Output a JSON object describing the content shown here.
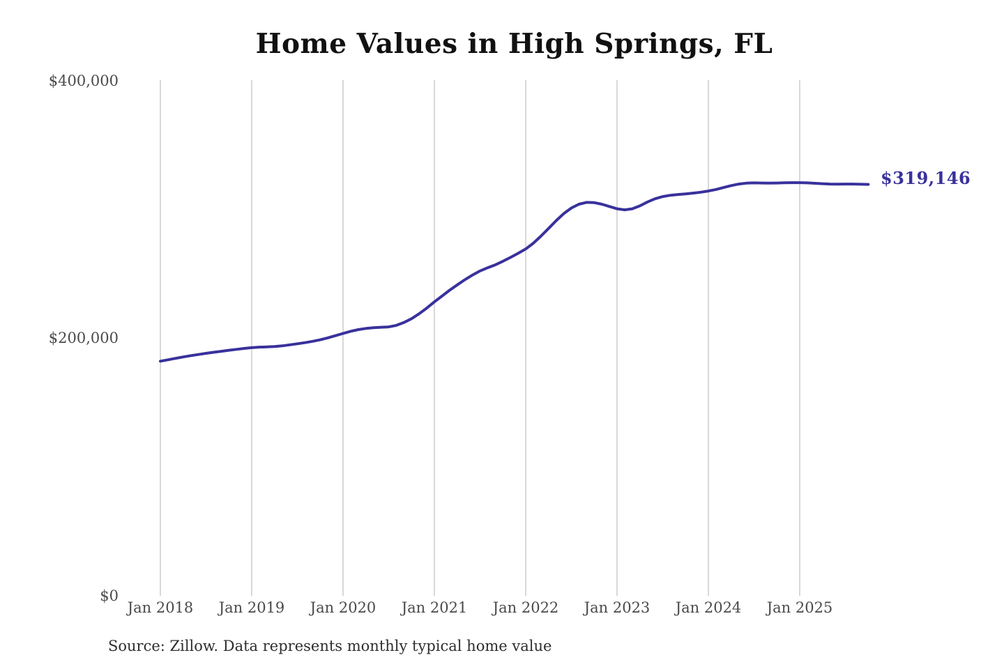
{
  "chart": {
    "title": "Home Values in High Springs, FL",
    "source": "Source: Zillow. Data represents monthly typical home value",
    "end_label": "$319,146"
  },
  "chart_data": {
    "type": "line",
    "title": "Home Values in High Springs, FL",
    "xlabel": "",
    "ylabel": "",
    "ylim": [
      0,
      400000
    ],
    "grid": "vertical-only",
    "legend_position": "none",
    "line_color": "#39319c",
    "gridline_color": "#cbcbcb",
    "title_color": "#111111",
    "tick_color": "#4a4a4a",
    "y_ticks": [
      "$0",
      "$200,000",
      "$400,000"
    ],
    "x_ticks": [
      "Jan 2018",
      "Jan 2019",
      "Jan 2020",
      "Jan 2021",
      "Jan 2022",
      "Jan 2023",
      "Jan 2024",
      "Jan 2025"
    ],
    "final_value": 319146,
    "months": [
      "2018-01",
      "2018-02",
      "2018-03",
      "2018-04",
      "2018-05",
      "2018-06",
      "2018-07",
      "2018-08",
      "2018-09",
      "2018-10",
      "2018-11",
      "2018-12",
      "2019-01",
      "2019-02",
      "2019-03",
      "2019-04",
      "2019-05",
      "2019-06",
      "2019-07",
      "2019-08",
      "2019-09",
      "2019-10",
      "2019-11",
      "2019-12",
      "2020-01",
      "2020-02",
      "2020-03",
      "2020-04",
      "2020-05",
      "2020-06",
      "2020-07",
      "2020-08",
      "2020-09",
      "2020-10",
      "2020-11",
      "2020-12",
      "2021-01",
      "2021-02",
      "2021-03",
      "2021-04",
      "2021-05",
      "2021-06",
      "2021-07",
      "2021-08",
      "2021-09",
      "2021-10",
      "2021-11",
      "2021-12",
      "2022-01",
      "2022-02",
      "2022-03",
      "2022-04",
      "2022-05",
      "2022-06",
      "2022-07",
      "2022-08",
      "2022-09",
      "2022-10",
      "2022-11",
      "2022-12",
      "2023-01",
      "2023-02",
      "2023-03",
      "2023-04",
      "2023-05",
      "2023-06",
      "2023-07",
      "2023-08",
      "2023-09",
      "2023-10",
      "2023-11",
      "2023-12",
      "2024-01",
      "2024-02",
      "2024-03",
      "2024-04",
      "2024-05",
      "2024-06",
      "2024-07",
      "2024-08",
      "2024-09",
      "2024-10",
      "2024-11",
      "2024-12",
      "2025-01",
      "2025-02",
      "2025-03",
      "2025-04",
      "2025-05",
      "2025-06",
      "2025-07",
      "2025-08",
      "2025-09",
      "2025-10"
    ],
    "values": [
      182000,
      183100,
      184200,
      185300,
      186300,
      187200,
      188100,
      188900,
      189700,
      190500,
      191200,
      191900,
      192500,
      192900,
      193100,
      193400,
      193900,
      194700,
      195500,
      196400,
      197400,
      198600,
      200100,
      201800,
      203500,
      205200,
      206500,
      207400,
      208000,
      208300,
      208600,
      209800,
      212000,
      215000,
      218800,
      223200,
      228000,
      232500,
      237000,
      241200,
      245200,
      248800,
      252000,
      254500,
      256700,
      259500,
      262500,
      265700,
      269000,
      273500,
      279000,
      285000,
      291000,
      296500,
      300800,
      303800,
      305200,
      305000,
      303800,
      302000,
      300200,
      299400,
      300200,
      302500,
      305500,
      308000,
      309700,
      310700,
      311300,
      311800,
      312400,
      313100,
      314000,
      315200,
      316700,
      318200,
      319400,
      320100,
      320300,
      320200,
      320100,
      320200,
      320400,
      320500,
      320500,
      320300,
      320000,
      319700,
      319400,
      319300,
      319400,
      319400,
      319250,
      319146
    ]
  }
}
